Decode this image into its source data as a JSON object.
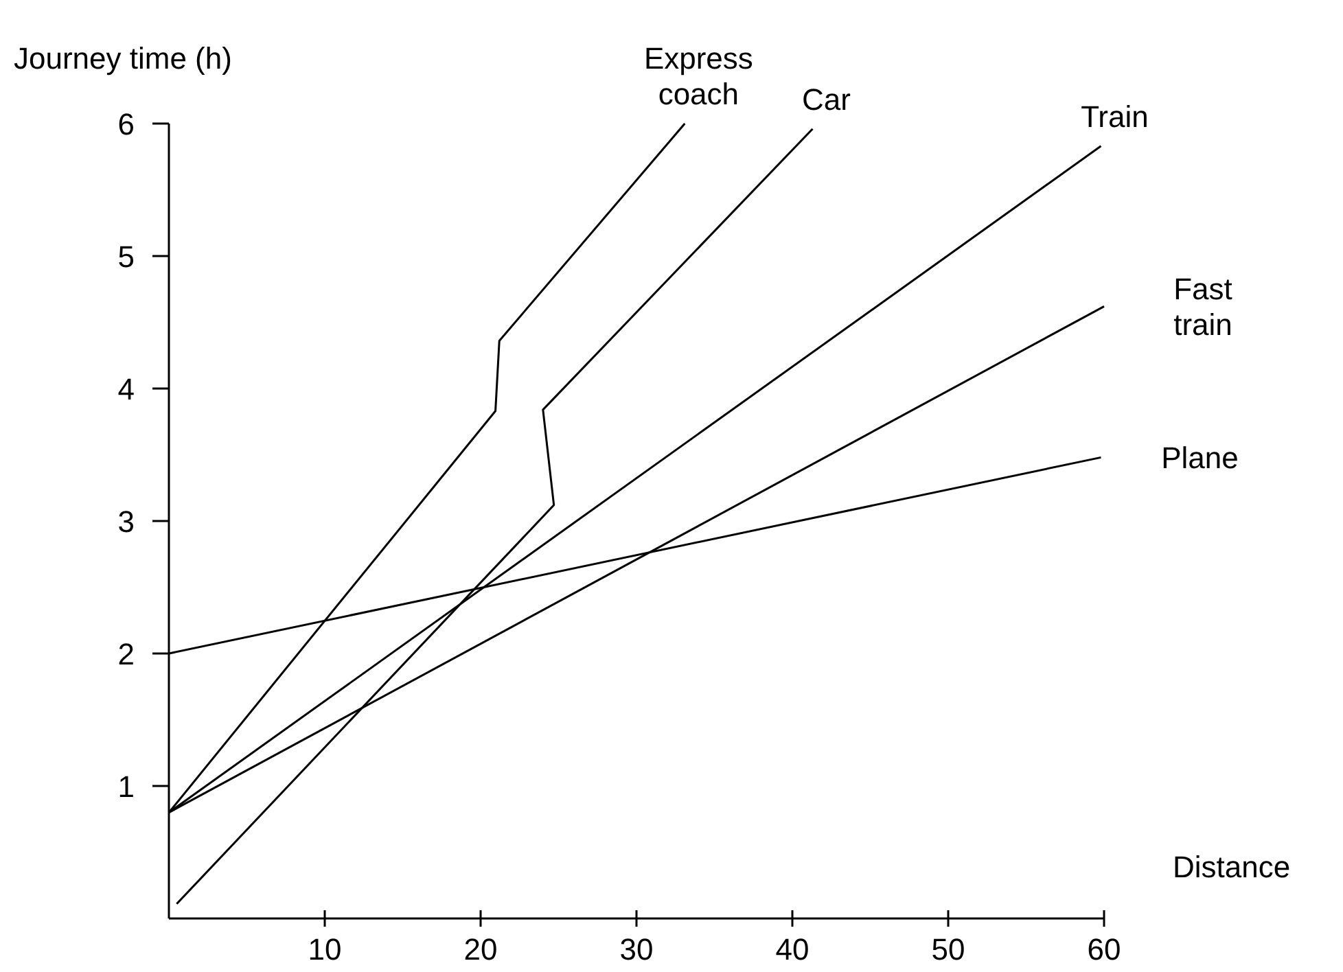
{
  "chart_data": {
    "type": "line",
    "xlabel": "Distance",
    "ylabel": "Journey time (h)",
    "xlim": [
      0,
      60
    ],
    "ylim": [
      0,
      6
    ],
    "xticks": [
      10,
      20,
      30,
      40,
      50,
      60
    ],
    "yticks": [
      1,
      2,
      3,
      4,
      5,
      6
    ],
    "grid": false,
    "legend": false,
    "marker": "none",
    "line_style": "solid",
    "series": [
      {
        "name": "Express coach",
        "color": "#000000",
        "x": [
          0,
          20.95,
          21.2,
          33.1
        ],
        "values": [
          0.8,
          3.83,
          4.36,
          6.0
        ]
      },
      {
        "name": "Car",
        "color": "#000000",
        "x": [
          0.5,
          24.7,
          24.0,
          41.3
        ],
        "values": [
          0.11,
          3.12,
          3.84,
          5.96
        ]
      },
      {
        "name": "Train",
        "color": "#000000",
        "x": [
          0,
          59.8
        ],
        "values": [
          0.8,
          5.83
        ]
      },
      {
        "name": "Fast train",
        "color": "#000000",
        "x": [
          0,
          60
        ],
        "values": [
          0.8,
          4.62
        ]
      },
      {
        "name": "Plane",
        "color": "#000000",
        "x": [
          0,
          59.8
        ],
        "values": [
          2.0,
          3.48
        ]
      }
    ]
  }
}
